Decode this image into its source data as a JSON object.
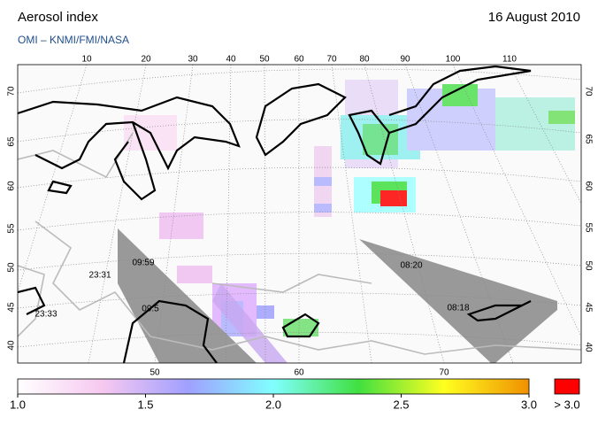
{
  "header": {
    "title": "Aerosol index",
    "date": "16 August 2010",
    "credit": "OMI  –  KNMI/FMI/NASA"
  },
  "map": {
    "top_lon_labels": [
      "10",
      "20",
      "30",
      "40",
      "50",
      "60",
      "70",
      "80",
      "90",
      "100",
      "110"
    ],
    "bottom_lon_labels": [
      "50",
      "60",
      "70"
    ],
    "left_lat_labels": [
      "70",
      "65",
      "60",
      "55",
      "50",
      "45",
      "40"
    ],
    "right_lat_labels": [
      "70",
      "65",
      "60",
      "55",
      "50",
      "45",
      "40"
    ],
    "orbit_times": [
      "09:59",
      "23:31",
      "09:5",
      "23:33",
      "08:20",
      "08:18"
    ]
  },
  "colorbar": {
    "range": [
      1,
      3
    ],
    "ticks": [
      {
        "value": 1,
        "label": "1.0"
      },
      {
        "value": 1.5,
        "label": "1.5"
      },
      {
        "value": 2,
        "label": "2.0"
      },
      {
        "value": 2.5,
        "label": "2.5"
      },
      {
        "value": 3,
        "label": "3.0"
      }
    ],
    "colors": [
      "#ffffff",
      "#f6c8f0",
      "#a0a0ff",
      "#80ffff",
      "#40e040",
      "#ffff20",
      "#f09000"
    ],
    "over_color": "#ff0000",
    "over_label": "> 3.0"
  }
}
